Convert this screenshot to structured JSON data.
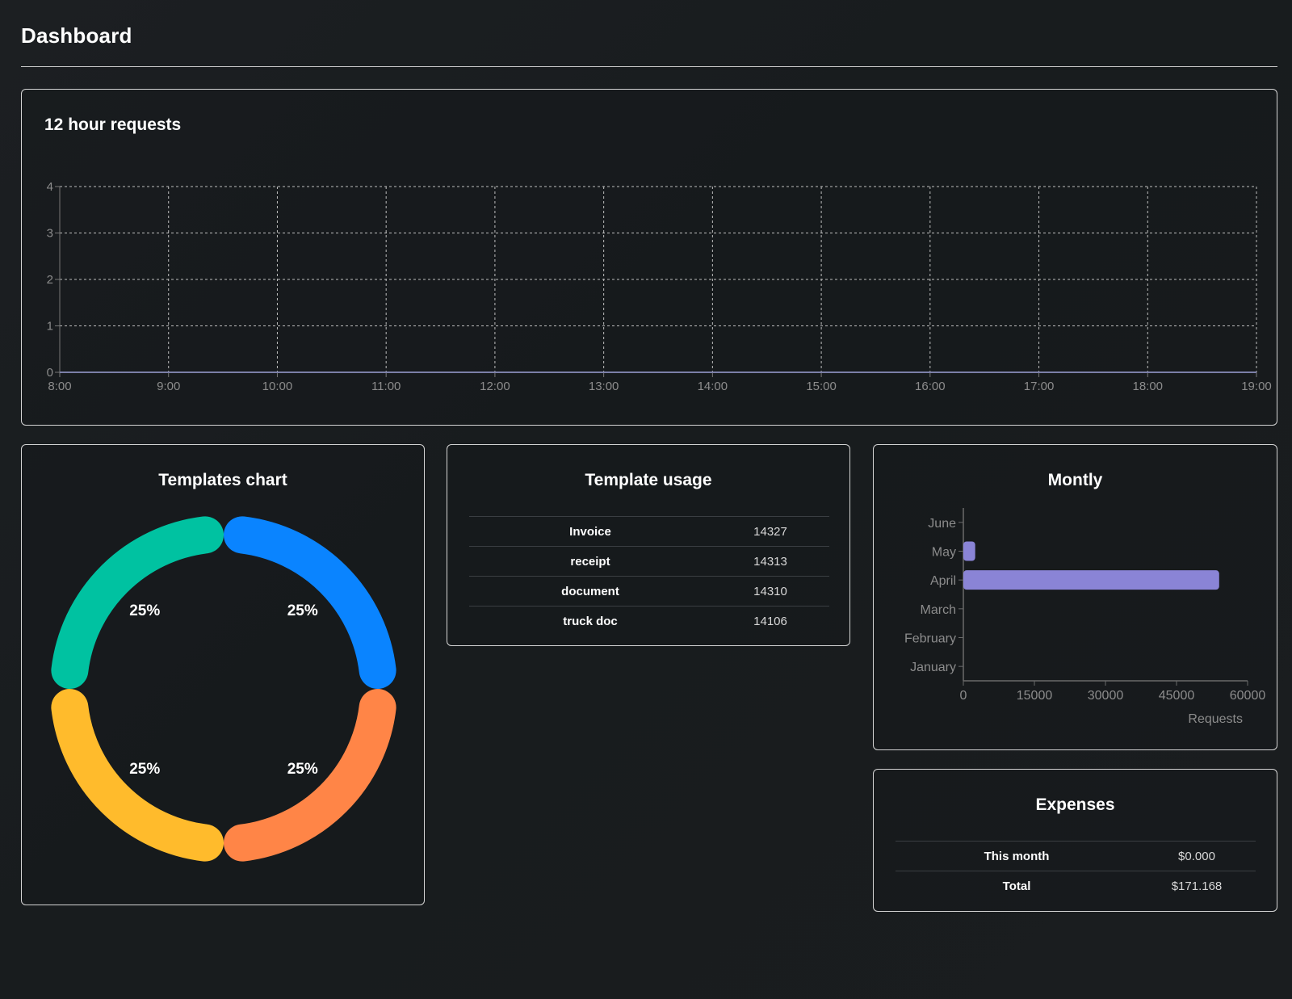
{
  "header": {
    "title": "Dashboard"
  },
  "requests_card": {
    "title": "12 hour requests"
  },
  "templates_card": {
    "title": "Templates chart"
  },
  "usage_card": {
    "title": "Template usage",
    "rows": [
      {
        "name": "Invoice",
        "count": "14327"
      },
      {
        "name": "receipt",
        "count": "14313"
      },
      {
        "name": "document",
        "count": "14310"
      },
      {
        "name": "truck doc",
        "count": "14106"
      }
    ]
  },
  "monthly_card": {
    "title": "Montly"
  },
  "expenses_card": {
    "title": "Expenses",
    "rows": [
      {
        "label": "This month",
        "value": "$0.000"
      },
      {
        "label": "Total",
        "value": "$171.168"
      }
    ]
  },
  "chart_data": [
    {
      "type": "line",
      "title": "12 hour requests",
      "x": [
        "8:00",
        "9:00",
        "10:00",
        "11:00",
        "12:00",
        "13:00",
        "14:00",
        "15:00",
        "16:00",
        "17:00",
        "18:00",
        "19:00"
      ],
      "series": [
        {
          "values": [
            0,
            0,
            0,
            0,
            0,
            0,
            0,
            0,
            0,
            0,
            0,
            0
          ],
          "color": "#7b7fa8"
        }
      ],
      "ylim": [
        0,
        4
      ],
      "yticks": [
        0,
        1,
        2,
        3,
        4
      ],
      "grid": true
    },
    {
      "type": "pie",
      "title": "Templates chart",
      "slices": [
        {
          "value": 25,
          "label": "25%",
          "color": "#0a84ff"
        },
        {
          "value": 25,
          "label": "25%",
          "color": "#ff8547"
        },
        {
          "value": 25,
          "label": "25%",
          "color": "#ffbb2c"
        },
        {
          "value": 25,
          "label": "25%",
          "color": "#00c2a1"
        }
      ]
    },
    {
      "type": "bar",
      "orientation": "horizontal",
      "title": "Montly",
      "categories": [
        "January",
        "February",
        "March",
        "April",
        "May",
        "June"
      ],
      "values": [
        0,
        0,
        0,
        54000,
        2500,
        0
      ],
      "xlabel": "Requests",
      "xlim": [
        0,
        60000
      ],
      "xticks": [
        0,
        15000,
        30000,
        45000,
        60000
      ],
      "color": "#8a84d6"
    }
  ]
}
